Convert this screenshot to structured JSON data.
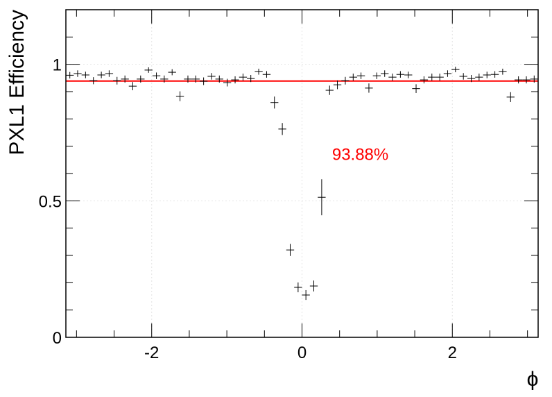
{
  "chart_data": {
    "type": "scatter",
    "title": "",
    "xlabel": "ϕ",
    "ylabel": "PXL1 Efficiency",
    "xlim": [
      -3.1416,
      3.1416
    ],
    "ylim": [
      0,
      1.2
    ],
    "grid": true,
    "x_ticks": [
      {
        "value": -2,
        "label": "-2"
      },
      {
        "value": 0,
        "label": "0"
      },
      {
        "value": 2,
        "label": "2"
      }
    ],
    "y_ticks": [
      {
        "value": 0,
        "label": "0"
      },
      {
        "value": 0.5,
        "label": "0.5"
      },
      {
        "value": 1,
        "label": "1"
      }
    ],
    "fit_line": {
      "y": 0.9388,
      "color": "#ff0000"
    },
    "annotation": {
      "text": "93.88%",
      "x": 0.4,
      "y": 0.67,
      "color": "#ff0000"
    },
    "bin_width": 0.1047,
    "series": [
      {
        "marker_color": "#000000",
        "points": [
          {
            "x": -3.089,
            "y": 0.96,
            "err": 0.012
          },
          {
            "x": -2.985,
            "y": 0.966,
            "err": 0.012
          },
          {
            "x": -2.88,
            "y": 0.961,
            "err": 0.012
          },
          {
            "x": -2.775,
            "y": 0.94,
            "err": 0.013
          },
          {
            "x": -2.67,
            "y": 0.961,
            "err": 0.012
          },
          {
            "x": -2.566,
            "y": 0.966,
            "err": 0.012
          },
          {
            "x": -2.461,
            "y": 0.94,
            "err": 0.014
          },
          {
            "x": -2.356,
            "y": 0.946,
            "err": 0.013
          },
          {
            "x": -2.252,
            "y": 0.92,
            "err": 0.015
          },
          {
            "x": -2.147,
            "y": 0.946,
            "err": 0.013
          },
          {
            "x": -2.042,
            "y": 0.979,
            "err": 0.01
          },
          {
            "x": -1.937,
            "y": 0.958,
            "err": 0.012
          },
          {
            "x": -1.833,
            "y": 0.946,
            "err": 0.013
          },
          {
            "x": -1.728,
            "y": 0.971,
            "err": 0.011
          },
          {
            "x": -1.623,
            "y": 0.883,
            "err": 0.018
          },
          {
            "x": -1.518,
            "y": 0.946,
            "err": 0.013
          },
          {
            "x": -1.414,
            "y": 0.946,
            "err": 0.013
          },
          {
            "x": -1.309,
            "y": 0.938,
            "err": 0.014
          },
          {
            "x": -1.204,
            "y": 0.956,
            "err": 0.012
          },
          {
            "x": -1.1,
            "y": 0.946,
            "err": 0.013
          },
          {
            "x": -0.995,
            "y": 0.933,
            "err": 0.014
          },
          {
            "x": -0.89,
            "y": 0.943,
            "err": 0.013
          },
          {
            "x": -0.785,
            "y": 0.953,
            "err": 0.013
          },
          {
            "x": -0.681,
            "y": 0.948,
            "err": 0.013
          },
          {
            "x": -0.576,
            "y": 0.973,
            "err": 0.011
          },
          {
            "x": -0.471,
            "y": 0.963,
            "err": 0.012
          },
          {
            "x": -0.367,
            "y": 0.86,
            "err": 0.022
          },
          {
            "x": -0.262,
            "y": 0.763,
            "err": 0.022
          },
          {
            "x": -0.157,
            "y": 0.32,
            "err": 0.022
          },
          {
            "x": -0.052,
            "y": 0.183,
            "err": 0.018
          },
          {
            "x": 0.052,
            "y": 0.155,
            "err": 0.018
          },
          {
            "x": 0.157,
            "y": 0.188,
            "err": 0.02
          },
          {
            "x": 0.262,
            "y": 0.513,
            "err": 0.066
          },
          {
            "x": 0.367,
            "y": 0.905,
            "err": 0.017
          },
          {
            "x": 0.471,
            "y": 0.925,
            "err": 0.016
          },
          {
            "x": 0.576,
            "y": 0.94,
            "err": 0.014
          },
          {
            "x": 0.681,
            "y": 0.953,
            "err": 0.013
          },
          {
            "x": 0.785,
            "y": 0.958,
            "err": 0.012
          },
          {
            "x": 0.89,
            "y": 0.913,
            "err": 0.017
          },
          {
            "x": 0.995,
            "y": 0.958,
            "err": 0.012
          },
          {
            "x": 1.1,
            "y": 0.966,
            "err": 0.012
          },
          {
            "x": 1.204,
            "y": 0.953,
            "err": 0.013
          },
          {
            "x": 1.309,
            "y": 0.963,
            "err": 0.012
          },
          {
            "x": 1.414,
            "y": 0.961,
            "err": 0.012
          },
          {
            "x": 1.518,
            "y": 0.911,
            "err": 0.016
          },
          {
            "x": 1.623,
            "y": 0.943,
            "err": 0.013
          },
          {
            "x": 1.728,
            "y": 0.953,
            "err": 0.013
          },
          {
            "x": 1.833,
            "y": 0.953,
            "err": 0.013
          },
          {
            "x": 1.937,
            "y": 0.966,
            "err": 0.012
          },
          {
            "x": 2.042,
            "y": 0.981,
            "err": 0.01
          },
          {
            "x": 2.147,
            "y": 0.956,
            "err": 0.012
          },
          {
            "x": 2.252,
            "y": 0.948,
            "err": 0.013
          },
          {
            "x": 2.356,
            "y": 0.953,
            "err": 0.013
          },
          {
            "x": 2.461,
            "y": 0.961,
            "err": 0.012
          },
          {
            "x": 2.566,
            "y": 0.963,
            "err": 0.012
          },
          {
            "x": 2.67,
            "y": 0.973,
            "err": 0.011
          },
          {
            "x": 2.775,
            "y": 0.88,
            "err": 0.018
          },
          {
            "x": 2.88,
            "y": 0.943,
            "err": 0.013
          },
          {
            "x": 2.985,
            "y": 0.943,
            "err": 0.013
          },
          {
            "x": 3.089,
            "y": 0.946,
            "err": 0.013
          }
        ]
      }
    ]
  }
}
